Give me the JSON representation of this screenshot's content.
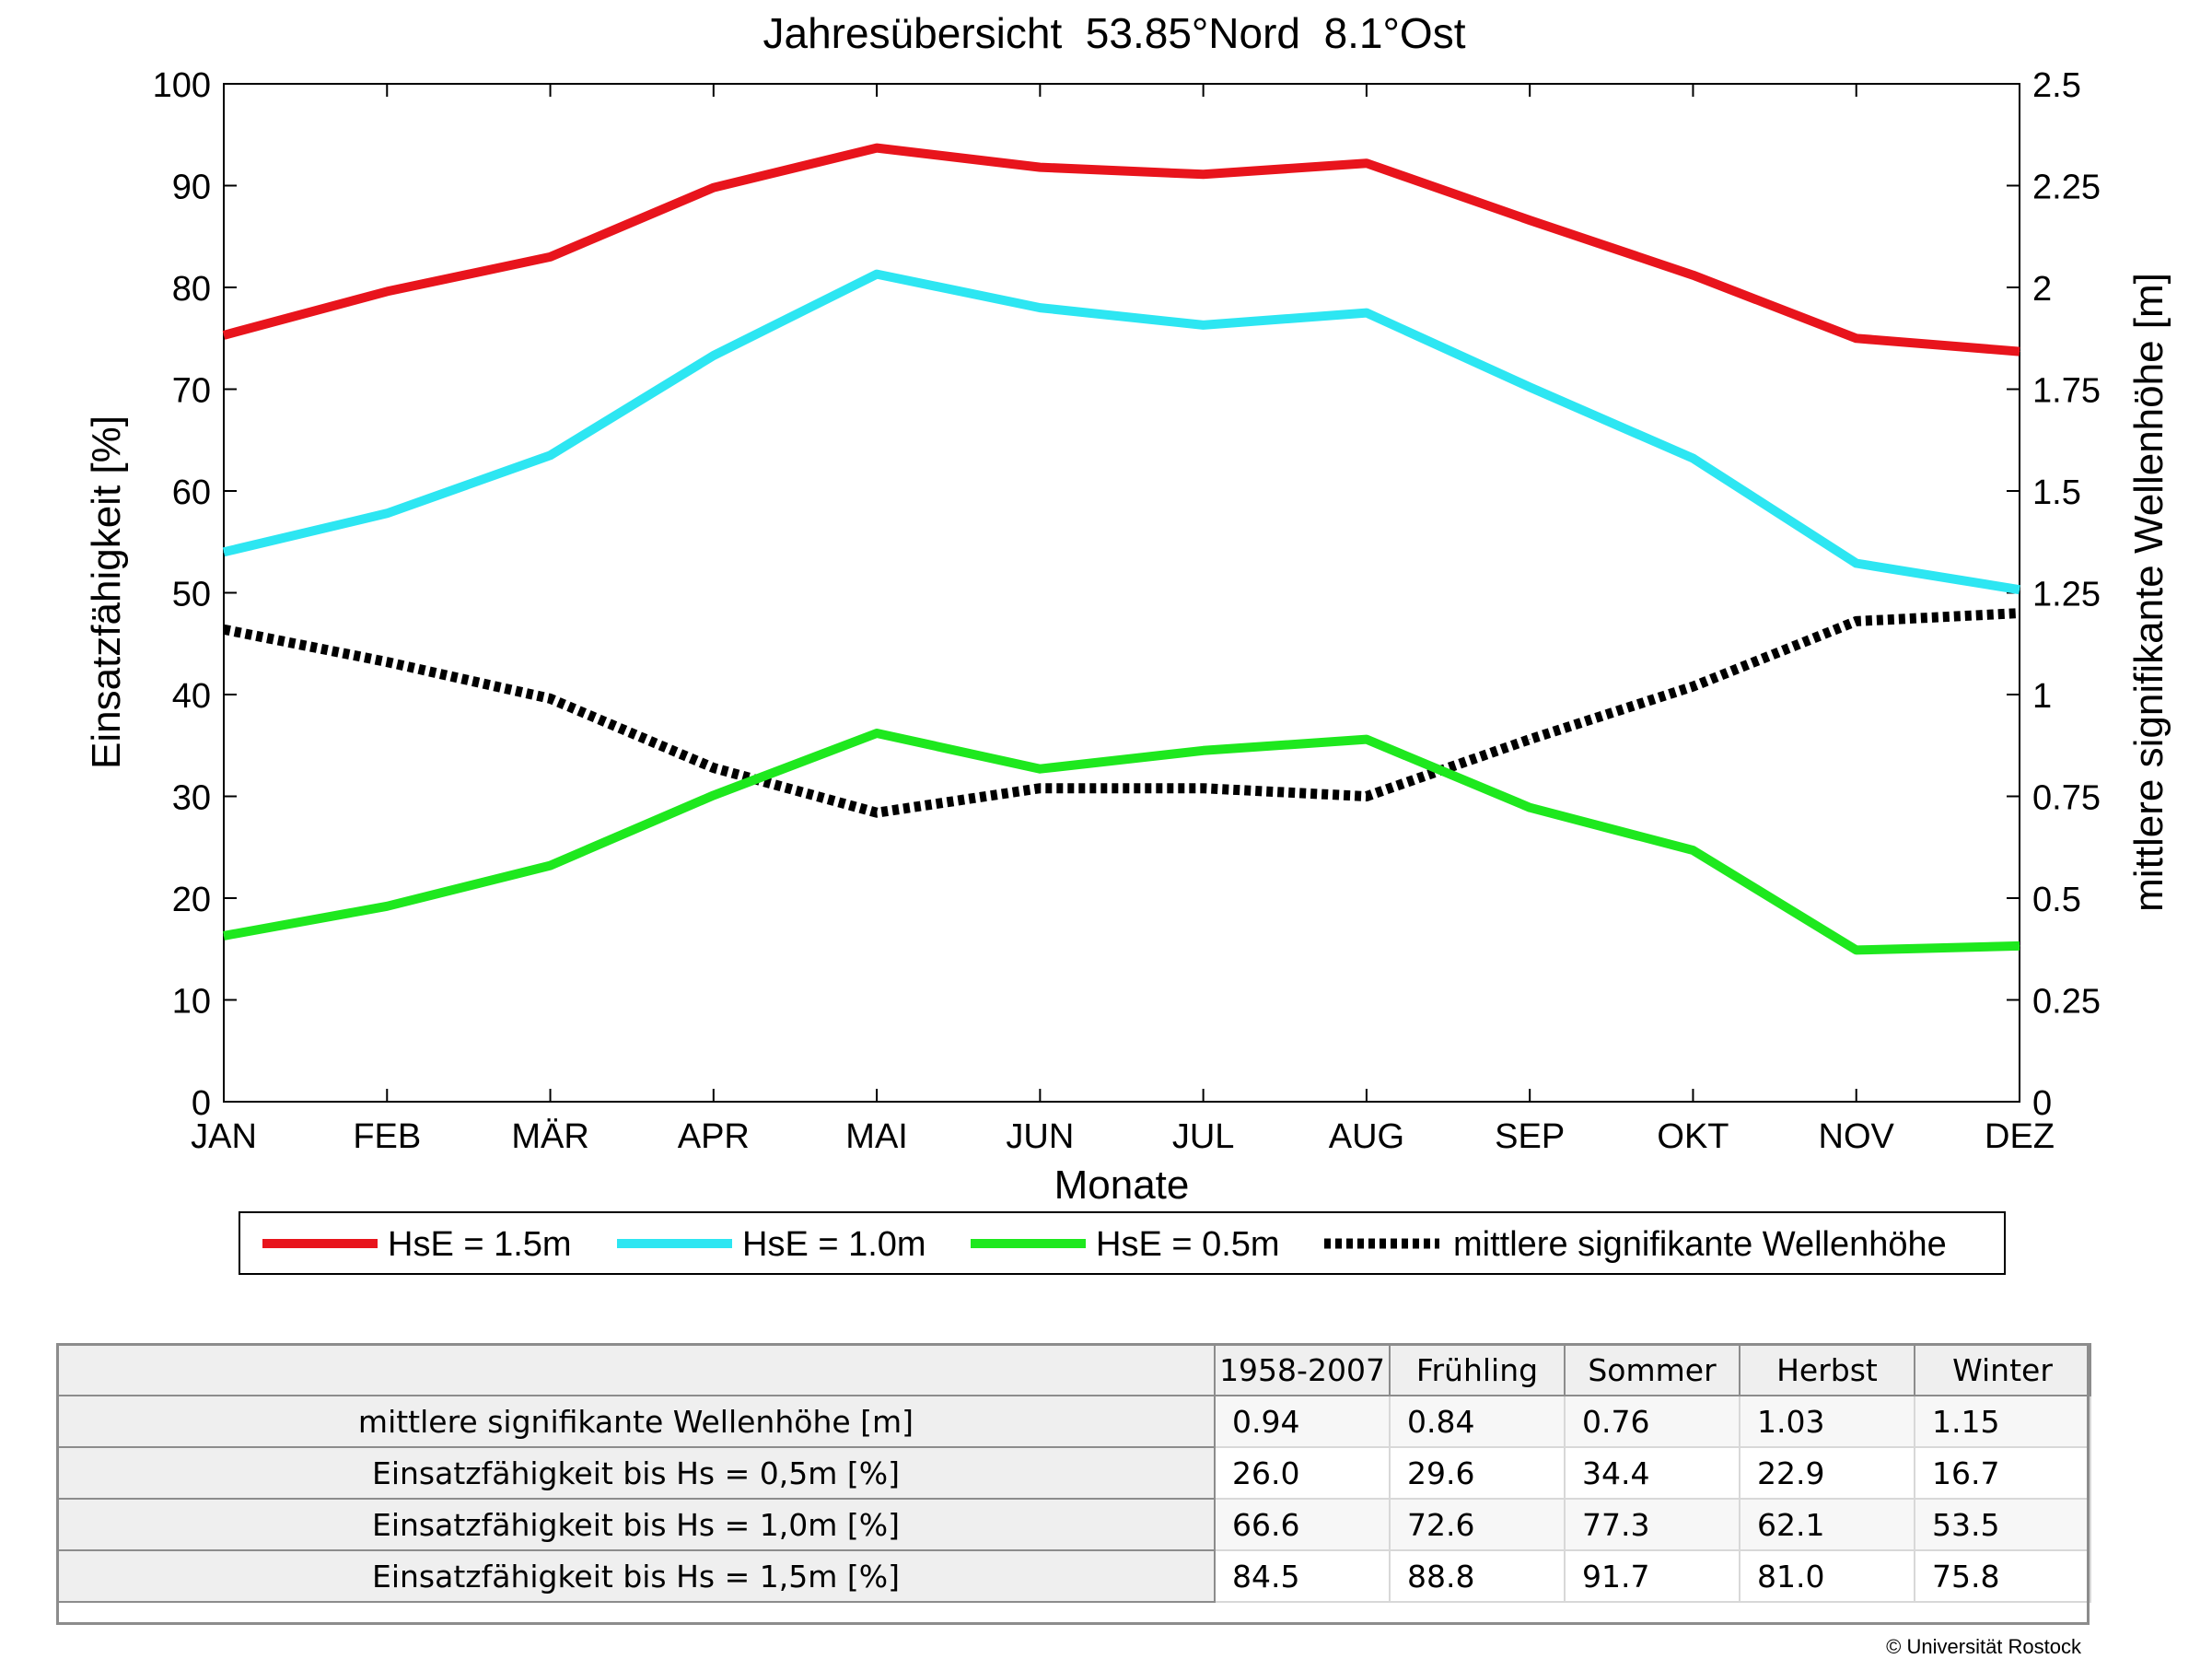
{
  "chart_data": {
    "type": "line",
    "title": "Jahresübersicht  53.85°Nord  8.1°Ost",
    "xlabel": "Monate",
    "ylabel": "Einsatzfähigkeit [%]",
    "y2label": "mittlere signifikante Wellenhöhe [m]",
    "categories": [
      "JAN",
      "FEB",
      "MÄR",
      "APR",
      "MAI",
      "JUN",
      "JUL",
      "AUG",
      "SEP",
      "OKT",
      "NOV",
      "DEZ"
    ],
    "ylim": [
      0,
      100
    ],
    "y2lim": [
      0,
      2.5
    ],
    "yticks": [
      "0",
      "10",
      "20",
      "30",
      "40",
      "50",
      "60",
      "70",
      "80",
      "90",
      "100"
    ],
    "y2ticks": [
      "0",
      "0.25",
      "0.5",
      "0.75",
      "1",
      "1.25",
      "1.5",
      "1.75",
      "2",
      "2.25",
      "2.5"
    ],
    "grid": false,
    "legend_position": "bottom",
    "series": [
      {
        "name": "HsE = 1.5m",
        "axis": "left",
        "color": "#e8141c",
        "style": "solid",
        "values": [
          75.3,
          79.6,
          83.0,
          89.8,
          93.7,
          91.8,
          91.1,
          92.2,
          86.6,
          81.2,
          75.0,
          73.7
        ]
      },
      {
        "name": "HsE = 1.0m",
        "axis": "left",
        "color": "#2de6f2",
        "style": "solid",
        "values": [
          54.0,
          57.8,
          63.5,
          73.3,
          81.3,
          78.0,
          76.3,
          77.5,
          70.2,
          63.2,
          52.9,
          50.3
        ]
      },
      {
        "name": "HsE = 0.5m",
        "axis": "left",
        "color": "#1ee81e",
        "style": "solid",
        "values": [
          16.3,
          19.2,
          23.2,
          30.1,
          36.2,
          32.7,
          34.5,
          35.6,
          28.9,
          24.7,
          14.9,
          15.3
        ]
      },
      {
        "name": "mittlere signifikante Wellenhöhe",
        "axis": "right",
        "color": "#000000",
        "style": "dotted",
        "values": [
          1.16,
          1.08,
          0.99,
          0.82,
          0.71,
          0.77,
          0.77,
          0.75,
          0.89,
          1.02,
          1.18,
          1.2
        ]
      }
    ]
  },
  "table": {
    "corner": "",
    "headers": [
      "1958-2007",
      "Frühling",
      "Sommer",
      "Herbst",
      "Winter"
    ],
    "rows": [
      {
        "label": "mittlere signifikante Wellenhöhe [m]",
        "values": [
          "0.94",
          "0.84",
          "0.76",
          "1.03",
          "1.15"
        ]
      },
      {
        "label": "Einsatzfähigkeit bis Hs = 0,5m [%]",
        "values": [
          "26.0",
          "29.6",
          "34.4",
          "22.9",
          "16.7"
        ]
      },
      {
        "label": "Einsatzfähigkeit bis Hs = 1,0m [%]",
        "values": [
          "66.6",
          "72.6",
          "77.3",
          "62.1",
          "53.5"
        ]
      },
      {
        "label": "Einsatzfähigkeit bis Hs = 1,5m [%]",
        "values": [
          "84.5",
          "88.8",
          "91.7",
          "81.0",
          "75.8"
        ]
      }
    ]
  },
  "footer": {
    "copyright": "© Universität Rostock"
  }
}
